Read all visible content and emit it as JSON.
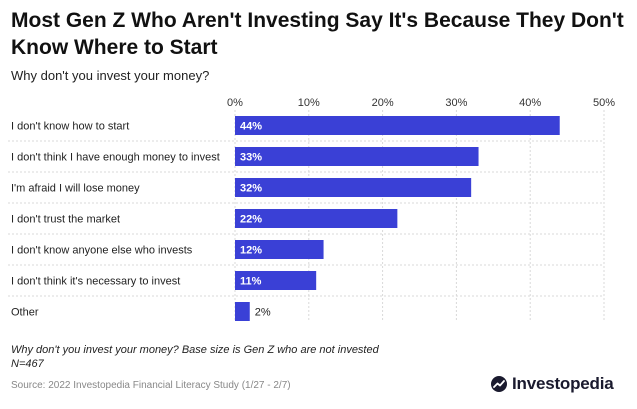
{
  "title": "Most Gen Z Who Aren't Investing Say It's Because They Don't Know Where to Start",
  "subtitle": "Why don't you invest your money?",
  "note_line1": "Why don't you invest your money? Base size is Gen Z who are not invested",
  "note_line2": "N=467",
  "source": "Source: 2022 Investopedia Financial Literacy Study (1/27 - 2/7)",
  "logo_text": "Investopedia",
  "colors": {
    "bar": "#3a40d6",
    "grid": "#d9d9d9"
  },
  "chart_data": {
    "type": "bar",
    "orientation": "horizontal",
    "title": "Most Gen Z Who Aren't Investing Say It's Because They Don't Know Where to Start",
    "subtitle": "Why don't you invest your money?",
    "categories": [
      "I don't know how to start",
      "I don't think I have enough money to invest",
      "I'm afraid I will lose money",
      "I don't trust the market",
      "I don't know anyone else who invests",
      "I don't think it's necessary to invest",
      "Other"
    ],
    "values": [
      44,
      33,
      32,
      22,
      12,
      11,
      2
    ],
    "value_labels": [
      "44%",
      "33%",
      "32%",
      "22%",
      "12%",
      "11%",
      "2%"
    ],
    "xlim": [
      0,
      50
    ],
    "xticks": [
      "0%",
      "10%",
      "20%",
      "30%",
      "40%",
      "50%"
    ],
    "xtick_values": [
      0,
      10,
      20,
      30,
      40,
      50
    ],
    "grid": true,
    "legend": "none"
  }
}
